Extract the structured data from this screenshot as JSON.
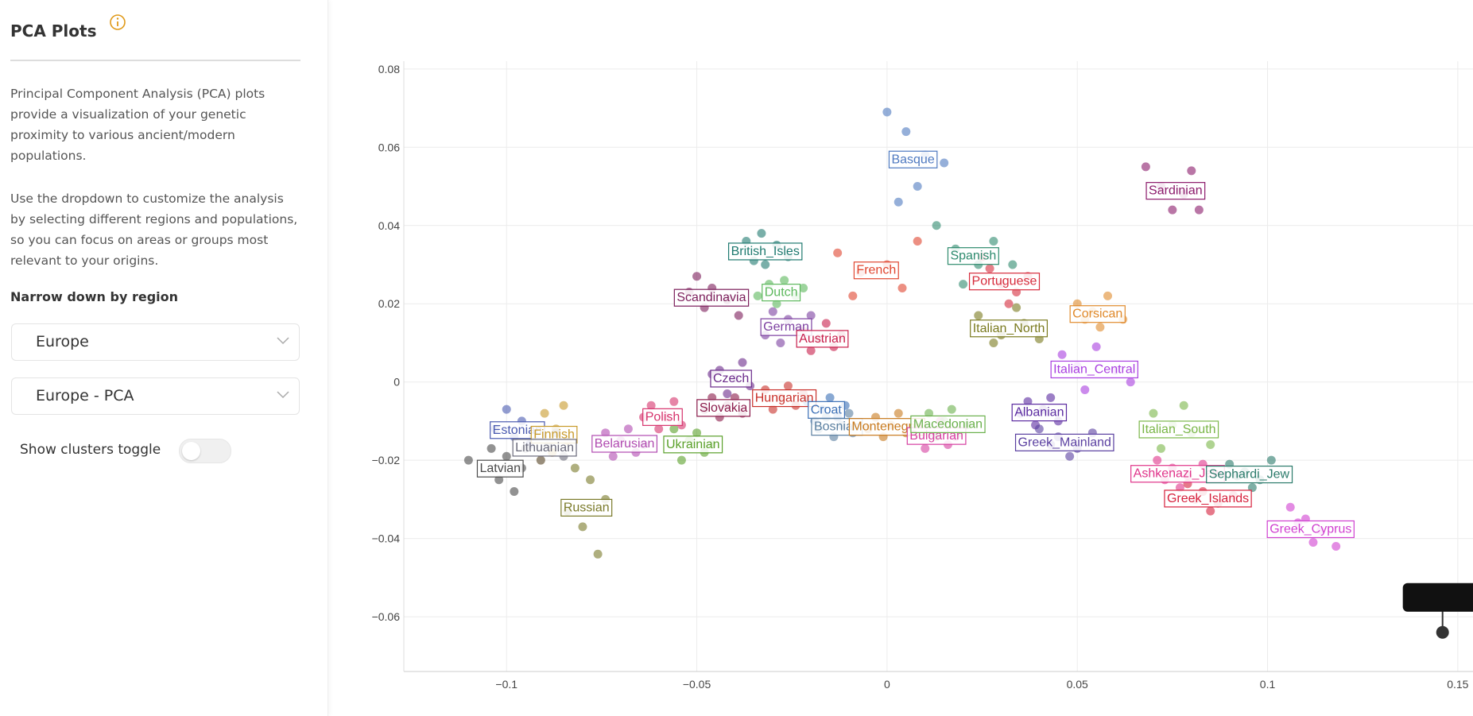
{
  "sidebar": {
    "title": "PCA Plots",
    "intro": "Principal Component Analysis (PCA) plots provide a visualization of your genetic proximity to various ancient/modern populations.",
    "usage": "Use the dropdown to customize the analysis by selecting different regions and populations, so you can focus on areas or groups most relevant to your origins.",
    "region_label": "Narrow down by region",
    "region_select": "Europe",
    "plot_select": "Europe - PCA",
    "toggle_label": "Show clusters toggle"
  },
  "chart_data": {
    "type": "scatter",
    "grid": true,
    "xlim": [
      -0.127,
      0.154
    ],
    "ylim": [
      -0.074,
      0.082
    ],
    "xticks": [
      {
        "value": -0.1,
        "label": "−0.1"
      },
      {
        "value": -0.05,
        "label": "−0.05"
      },
      0,
      0.05,
      0.1,
      0.15
    ],
    "yticks": [
      {
        "value": -0.06,
        "label": "−0.06"
      },
      {
        "value": -0.04,
        "label": "−0.04"
      },
      {
        "value": -0.02,
        "label": "−0.02"
      },
      0,
      0.02,
      0.04,
      0.06,
      0.08
    ],
    "series": [
      {
        "name": "Basque",
        "color": "#4e79c0",
        "x": [
          0.0,
          0.005,
          0.01,
          0.015,
          0.008,
          0.003
        ],
        "y": [
          0.069,
          0.064,
          0.058,
          0.056,
          0.05,
          0.046
        ]
      },
      {
        "name": "Sardinian",
        "color": "#8b1a6b",
        "x": [
          0.068,
          0.072,
          0.078,
          0.082,
          0.075,
          0.08
        ],
        "y": [
          0.055,
          0.05,
          0.048,
          0.044,
          0.044,
          0.054
        ]
      },
      {
        "name": "Spanish",
        "color": "#2e8b6e",
        "x": [
          0.013,
          0.018,
          0.024,
          0.028,
          0.033,
          0.02
        ],
        "y": [
          0.04,
          0.034,
          0.03,
          0.036,
          0.03,
          0.025
        ]
      },
      {
        "name": "Portuguese",
        "color": "#d62c3c",
        "x": [
          0.027,
          0.03,
          0.034,
          0.037,
          0.032,
          0.025
        ],
        "y": [
          0.029,
          0.025,
          0.023,
          0.027,
          0.02,
          0.032
        ]
      },
      {
        "name": "French",
        "color": "#e0452f",
        "x": [
          -0.013,
          -0.007,
          0,
          0.004,
          -0.009,
          0.008
        ],
        "y": [
          0.033,
          0.028,
          0.03,
          0.024,
          0.022,
          0.036
        ]
      },
      {
        "name": "British_Isles",
        "color": "#1f7a70",
        "x": [
          -0.037,
          -0.033,
          -0.029,
          -0.026,
          -0.032,
          -0.035
        ],
        "y": [
          0.036,
          0.038,
          0.035,
          0.032,
          0.03,
          0.031
        ]
      },
      {
        "name": "Dutch",
        "color": "#5cb85c",
        "x": [
          -0.031,
          -0.027,
          -0.024,
          -0.029,
          -0.022,
          -0.034
        ],
        "y": [
          0.025,
          0.026,
          0.022,
          0.02,
          0.024,
          0.022
        ]
      },
      {
        "name": "Scandinavia",
        "color": "#7b1d5a",
        "x": [
          -0.05,
          -0.046,
          -0.042,
          -0.048,
          -0.052,
          -0.039
        ],
        "y": [
          0.027,
          0.024,
          0.021,
          0.019,
          0.023,
          0.017
        ]
      },
      {
        "name": "German",
        "color": "#7c3fa0",
        "x": [
          -0.03,
          -0.026,
          -0.023,
          -0.032,
          -0.028,
          -0.02
        ],
        "y": [
          0.018,
          0.016,
          0.013,
          0.012,
          0.01,
          0.017
        ]
      },
      {
        "name": "Austrian",
        "color": "#c81e4b",
        "x": [
          -0.022,
          -0.018,
          -0.014,
          -0.02,
          -0.016,
          -0.012
        ],
        "y": [
          0.013,
          0.011,
          0.009,
          0.008,
          0.015,
          0.012
        ]
      },
      {
        "name": "Corsican",
        "color": "#e08a2c",
        "x": [
          0.05,
          0.054,
          0.058,
          0.062,
          0.056,
          0.052
        ],
        "y": [
          0.02,
          0.018,
          0.022,
          0.016,
          0.014,
          0.016
        ]
      },
      {
        "name": "Italian_North",
        "color": "#7a7a1e",
        "x": [
          0.024,
          0.03,
          0.036,
          0.04,
          0.028,
          0.034
        ],
        "y": [
          0.017,
          0.012,
          0.015,
          0.011,
          0.01,
          0.019
        ]
      },
      {
        "name": "Italian_Central",
        "color": "#a93ee0",
        "x": [
          0.046,
          0.05,
          0.055,
          0.06,
          0.064,
          0.052
        ],
        "y": [
          0.007,
          0.004,
          0.009,
          0.003,
          0,
          -0.002
        ]
      },
      {
        "name": "Czech",
        "color": "#6a2a8a",
        "x": [
          -0.044,
          -0.04,
          -0.036,
          -0.042,
          -0.038,
          -0.046
        ],
        "y": [
          0.003,
          0.001,
          -0.001,
          -0.003,
          0.005,
          0.002
        ]
      },
      {
        "name": "Slovakia",
        "color": "#8a1a4a",
        "x": [
          -0.046,
          -0.042,
          -0.038,
          -0.044,
          -0.04,
          -0.048
        ],
        "y": [
          -0.004,
          -0.006,
          -0.008,
          -0.009,
          -0.004,
          -0.007
        ]
      },
      {
        "name": "Hungarian",
        "color": "#c8302a",
        "x": [
          -0.032,
          -0.028,
          -0.024,
          -0.03,
          -0.026,
          -0.022
        ],
        "y": [
          -0.002,
          -0.004,
          -0.006,
          -0.007,
          -0.001,
          -0.003
        ]
      },
      {
        "name": "Polish",
        "color": "#d6336c",
        "x": [
          -0.062,
          -0.058,
          -0.054,
          -0.06,
          -0.056,
          -0.064
        ],
        "y": [
          -0.006,
          -0.009,
          -0.011,
          -0.012,
          -0.005,
          -0.009
        ]
      },
      {
        "name": "Croat",
        "color": "#3b6fb6",
        "x": [
          -0.021,
          -0.017,
          -0.013,
          -0.019,
          -0.015,
          -0.011
        ],
        "y": [
          -0.005,
          -0.007,
          -0.009,
          -0.01,
          -0.004,
          -0.006
        ]
      },
      {
        "name": "Bosnian",
        "color": "#5a7fa0",
        "x": [
          -0.016,
          -0.012,
          -0.009,
          -0.014,
          -0.01,
          -0.018
        ],
        "y": [
          -0.009,
          -0.011,
          -0.013,
          -0.014,
          -0.008,
          -0.012
        ]
      },
      {
        "name": "Montenegrin",
        "color": "#c87a1e",
        "x": [
          -0.003,
          0.001,
          0.005,
          -0.001,
          0.003,
          -0.005
        ],
        "y": [
          -0.009,
          -0.011,
          -0.013,
          -0.014,
          -0.008,
          -0.012
        ]
      },
      {
        "name": "Bulgarian",
        "color": "#d63fa0",
        "x": [
          0.008,
          0.012,
          0.016,
          0.01,
          0.014,
          0.018
        ],
        "y": [
          -0.011,
          -0.013,
          -0.016,
          -0.017,
          -0.01,
          -0.014
        ]
      },
      {
        "name": "Macedonian",
        "color": "#6ab04c",
        "x": [
          0.011,
          0.015,
          0.019,
          0.013,
          0.017,
          0.021
        ],
        "y": [
          -0.008,
          -0.01,
          -0.013,
          -0.014,
          -0.007,
          -0.011
        ]
      },
      {
        "name": "Albanian",
        "color": "#5a2aa0",
        "x": [
          0.037,
          0.041,
          0.045,
          0.039,
          0.043,
          0.035
        ],
        "y": [
          -0.005,
          -0.007,
          -0.01,
          -0.011,
          -0.004,
          -0.008
        ]
      },
      {
        "name": "Greek_Mainland",
        "color": "#5a3fa0",
        "x": [
          0.04,
          0.045,
          0.05,
          0.054,
          0.048,
          0.043
        ],
        "y": [
          -0.012,
          -0.014,
          -0.017,
          -0.013,
          -0.019,
          -0.016
        ]
      },
      {
        "name": "Italian_South",
        "color": "#7ab648",
        "x": [
          0.07,
          0.075,
          0.08,
          0.085,
          0.078,
          0.072
        ],
        "y": [
          -0.008,
          -0.011,
          -0.013,
          -0.016,
          -0.006,
          -0.017
        ]
      },
      {
        "name": "Ashkenazi_Jew",
        "color": "#e0338a",
        "x": [
          0.071,
          0.075,
          0.079,
          0.083,
          0.077,
          0.073
        ],
        "y": [
          -0.02,
          -0.022,
          -0.024,
          -0.021,
          -0.027,
          -0.025
        ]
      },
      {
        "name": "Sephardi_Jew",
        "color": "#2a7a6a",
        "x": [
          0.09,
          0.094,
          0.098,
          0.101,
          0.096,
          0.092
        ],
        "y": [
          -0.021,
          -0.023,
          -0.025,
          -0.02,
          -0.027,
          -0.024
        ]
      },
      {
        "name": "Greek_Islands",
        "color": "#d6203c",
        "x": [
          0.079,
          0.083,
          0.087,
          0.091,
          0.085,
          0.081
        ],
        "y": [
          -0.026,
          -0.028,
          -0.031,
          -0.029,
          -0.033,
          -0.03
        ]
      },
      {
        "name": "Greek_Cyprus",
        "color": "#d040d0",
        "x": [
          0.106,
          0.11,
          0.114,
          0.118,
          0.112,
          0.108
        ],
        "y": [
          -0.032,
          -0.035,
          -0.038,
          -0.042,
          -0.041,
          -0.036
        ]
      },
      {
        "name": "Estonian",
        "color": "#4a5ab0",
        "x": [
          -0.1,
          -0.096,
          -0.092,
          -0.098,
          -0.094,
          -0.103
        ],
        "y": [
          -0.007,
          -0.01,
          -0.013,
          -0.014,
          -0.016,
          -0.012
        ]
      },
      {
        "name": "Finnish",
        "color": "#c89a2a",
        "x": [
          -0.09,
          -0.087,
          -0.084,
          -0.088,
          -0.085,
          -0.091
        ],
        "y": [
          -0.008,
          -0.012,
          -0.015,
          -0.018,
          -0.006,
          -0.02
        ]
      },
      {
        "name": "Lithuanian",
        "color": "#6a6a7a",
        "x": [
          -0.093,
          -0.089,
          -0.085,
          -0.091,
          -0.087,
          -0.095
        ],
        "y": [
          -0.014,
          -0.016,
          -0.019,
          -0.02,
          -0.013,
          -0.017
        ]
      },
      {
        "name": "Latvian",
        "color": "#4a4a4a",
        "x": [
          -0.104,
          -0.1,
          -0.096,
          -0.102,
          -0.098,
          -0.11
        ],
        "y": [
          -0.017,
          -0.019,
          -0.022,
          -0.025,
          -0.028,
          -0.02
        ]
      },
      {
        "name": "Belarusian",
        "color": "#b04ab0",
        "x": [
          -0.074,
          -0.07,
          -0.066,
          -0.072,
          -0.068,
          -0.064
        ],
        "y": [
          -0.013,
          -0.015,
          -0.018,
          -0.019,
          -0.012,
          -0.016
        ]
      },
      {
        "name": "Ukrainian",
        "color": "#5aa02a",
        "x": [
          -0.056,
          -0.052,
          -0.048,
          -0.054,
          -0.05,
          -0.046
        ],
        "y": [
          -0.012,
          -0.015,
          -0.018,
          -0.02,
          -0.013,
          -0.016
        ]
      },
      {
        "name": "Russian",
        "color": "#7a7a2a",
        "x": [
          -0.082,
          -0.078,
          -0.074,
          -0.08,
          -0.076,
          -0.084
        ],
        "y": [
          -0.022,
          -0.025,
          -0.03,
          -0.037,
          -0.044,
          -0.033
        ]
      },
      {
        "color": "#333333",
        "x": [
          0.146
        ],
        "y": [
          -0.064
        ]
      }
    ]
  }
}
